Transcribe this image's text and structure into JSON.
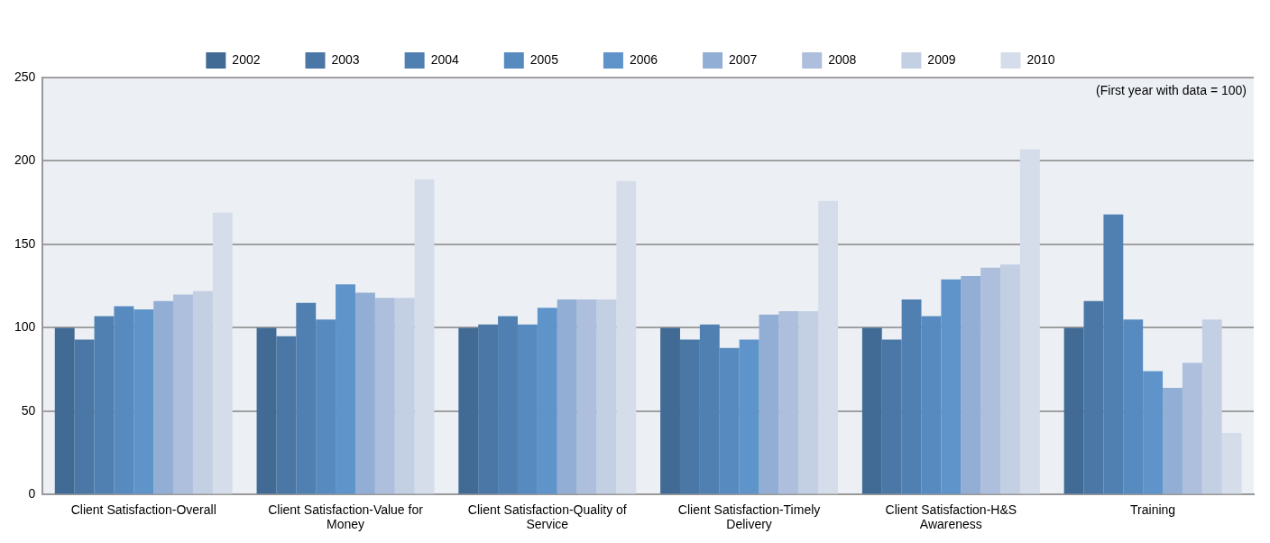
{
  "chart_data": {
    "type": "bar",
    "categories": [
      "Client Satisfaction-Overall",
      "Client Satisfaction-Value for Money",
      "Client Satisfaction-Quality of Service",
      "Client Satisfaction-Timely Delivery",
      "Client Satisfaction-H&S Awareness",
      "Training"
    ],
    "series": [
      {
        "name": "2002",
        "color": "#416b94",
        "values": [
          100,
          100,
          100,
          100,
          100,
          100
        ]
      },
      {
        "name": "2003",
        "color": "#4a77a5",
        "values": [
          93,
          95,
          102,
          93,
          93,
          116
        ]
      },
      {
        "name": "2004",
        "color": "#5080b2",
        "values": [
          107,
          115,
          107,
          102,
          117,
          168
        ]
      },
      {
        "name": "2005",
        "color": "#578abf",
        "values": [
          113,
          105,
          102,
          88,
          107,
          105
        ]
      },
      {
        "name": "2006",
        "color": "#5e94c9",
        "values": [
          111,
          126,
          112,
          93,
          129,
          74
        ]
      },
      {
        "name": "2007",
        "color": "#92aed4",
        "values": [
          116,
          121,
          117,
          108,
          131,
          64
        ]
      },
      {
        "name": "2008",
        "color": "#adbfdc",
        "values": [
          120,
          118,
          117,
          110,
          136,
          79
        ]
      },
      {
        "name": "2009",
        "color": "#c3cfe3",
        "values": [
          122,
          118,
          117,
          110,
          138,
          105
        ]
      },
      {
        "name": "2010",
        "color": "#d5dcea",
        "values": [
          169,
          189,
          188,
          176,
          207,
          37
        ]
      }
    ],
    "ylim": [
      0,
      250
    ],
    "yticks": [
      0,
      50,
      100,
      150,
      200,
      250
    ],
    "grid": "y",
    "legend": "top",
    "annotations": [
      "(First year with data = 100)"
    ]
  }
}
